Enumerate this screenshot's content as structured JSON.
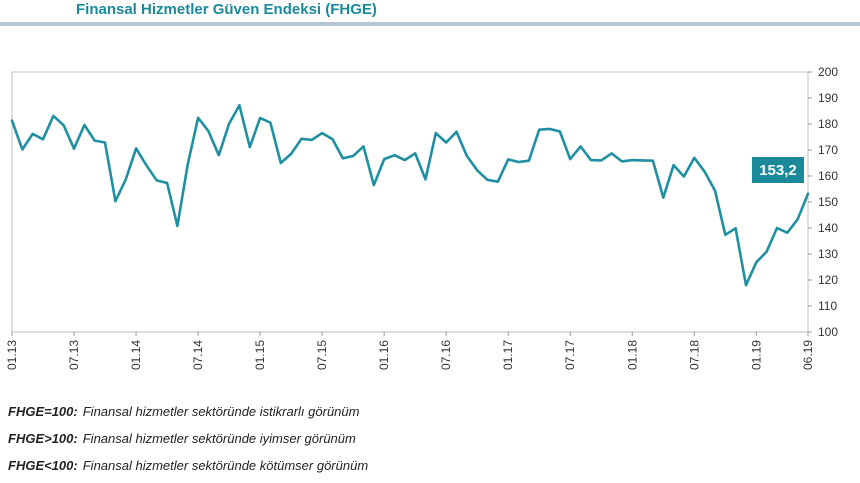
{
  "chart_data": {
    "type": "line",
    "title": "Finansal Hizmetler Güven Endeksi (FHGE)",
    "ylim": [
      100,
      200
    ],
    "yticks": [
      100,
      110,
      120,
      130,
      140,
      150,
      160,
      170,
      180,
      190,
      200
    ],
    "xtick_labels": [
      "01.13",
      "07.13",
      "01.14",
      "07.14",
      "01.15",
      "07.15",
      "01.16",
      "07.16",
      "01.17",
      "07.17",
      "01.18",
      "07.18",
      "01.19",
      "06.19"
    ],
    "xtick_index": [
      0,
      6,
      12,
      18,
      24,
      30,
      36,
      42,
      48,
      54,
      60,
      66,
      72,
      77
    ],
    "grid": false,
    "line_color": "#1f8fa2",
    "series": [
      {
        "values": [
          181.3,
          170.2,
          176.2,
          174.1,
          183.1,
          179.5,
          170.5,
          179.6,
          173.6,
          172.9,
          150.3,
          158.6,
          170.6,
          164.1,
          158.3,
          157.3,
          140.8,
          164.4,
          182.4,
          177.3,
          168.0,
          180.1,
          187.2,
          171.1,
          182.3,
          180.5,
          165.0,
          168.5,
          174.3,
          173.9,
          176.5,
          174.2,
          166.8,
          167.7,
          171.4,
          156.5,
          166.5,
          168.0,
          166.1,
          168.7,
          158.7,
          176.5,
          172.9,
          177.0,
          167.7,
          162.2,
          158.5,
          157.8,
          166.4,
          165.4,
          165.9,
          177.8,
          178.1,
          177.1,
          166.5,
          171.4,
          166.1,
          166.0,
          168.7,
          165.6,
          166.1,
          166.0,
          165.9,
          151.7,
          164.2,
          159.8,
          167.0,
          161.7,
          154.4,
          137.4,
          139.9,
          118.0,
          126.8,
          130.9,
          140.0,
          138.2,
          143.4,
          153.2
        ]
      }
    ],
    "last_value_label": "153,2",
    "last_label_color": "#1a8a9a"
  },
  "legend_notes": [
    {
      "key": "FHGE=100:",
      "text": "Finansal hizmetler sektöründe istikrarlı görünüm"
    },
    {
      "key": "FHGE>100:",
      "text": "Finansal hizmetler sektöründe iyimser görünüm"
    },
    {
      "key": "FHGE<100:",
      "text": "Finansal hizmetler sektöründe kötümser görünüm"
    }
  ]
}
